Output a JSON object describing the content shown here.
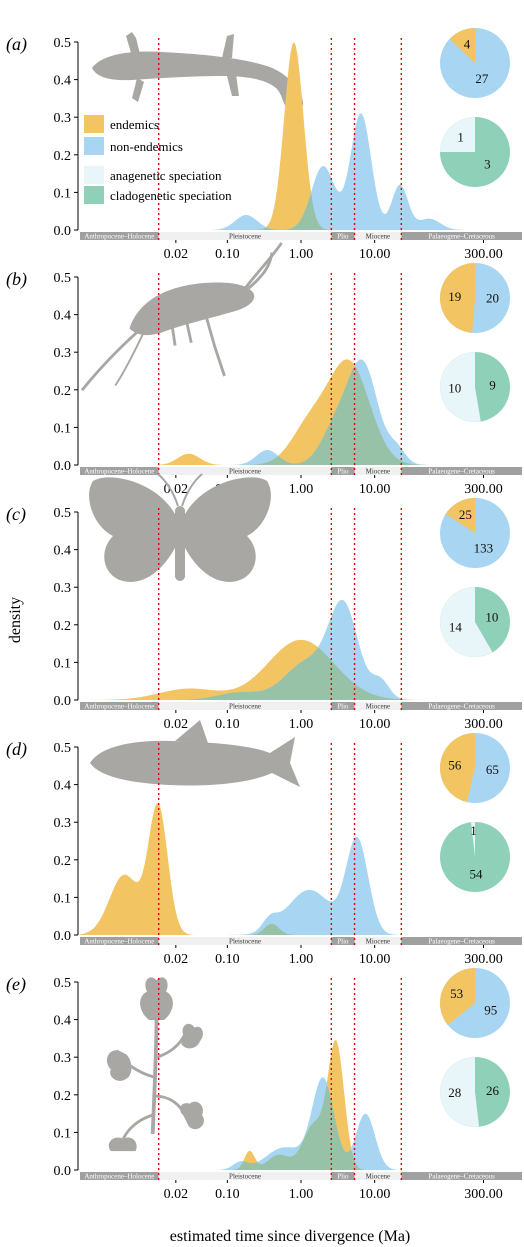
{
  "figure": {
    "ylabel": "density",
    "xlabel": "estimated time since divergence (Ma)"
  },
  "colors": {
    "endemic": "#f2c462",
    "nonendemic": "#a8d6f2",
    "anagenetic": "#e8f5f9",
    "cladogenetic": "#8fd1b8",
    "overlap": "#98c2a8",
    "silhouette": "#a9a7a4",
    "divider": "#e00000",
    "era_dark": "#a0a0a0",
    "era_light": "#f0f0f0"
  },
  "legend": [
    {
      "key": "endemic",
      "label": "endemics"
    },
    {
      "key": "nonendemic",
      "label": "non-endemics"
    },
    {
      "key": "anagenetic",
      "label": "anagenetic speciation"
    },
    {
      "key": "cladogenetic",
      "label": "cladogenetic speciation"
    }
  ],
  "chart_data": [
    {
      "panel": "(a)",
      "type": "area",
      "silhouette": "salamander-icon",
      "xscale": "log",
      "xlim": [
        0.001,
        1000
      ],
      "ylim": [
        0,
        0.52
      ],
      "yticks": [
        "0.0",
        "0.1",
        "0.2",
        "0.3",
        "0.4",
        "0.5"
      ],
      "xticks": [
        "0.02",
        "0.10",
        "1.00",
        "10.00",
        "300.00"
      ],
      "dividers_Ma": [
        0.0117,
        2.58,
        5.33,
        23
      ],
      "eras": [
        "Anthropocene–Holocene",
        "Pleistocene",
        "Plio",
        "Miocene",
        "Palaeogene–Cretaceous"
      ],
      "series": [
        {
          "name": "endemics",
          "key": "endemic",
          "peaks": [
            [
              0.8,
              0.5,
              0.13
            ]
          ]
        },
        {
          "name": "non-endemics",
          "key": "nonendemic",
          "peaks": [
            [
              6.5,
              0.31,
              0.14
            ],
            [
              2.0,
              0.17,
              0.16
            ],
            [
              0.18,
              0.04,
              0.15
            ],
            [
              22,
              0.12,
              0.11
            ],
            [
              55,
              0.03,
              0.15
            ]
          ]
        }
      ],
      "pies": [
        {
          "slices": [
            {
              "label": "endemics",
              "value": 4
            },
            {
              "label": "non-endemics",
              "value": 27
            }
          ]
        },
        {
          "slices": [
            {
              "label": "anagenetic speciation",
              "value": 1
            },
            {
              "label": "cladogenetic speciation",
              "value": 3
            }
          ]
        }
      ]
    },
    {
      "panel": "(b)",
      "type": "area",
      "silhouette": "shrimp-icon",
      "xscale": "log",
      "xlim": [
        0.001,
        1000
      ],
      "ylim": [
        0,
        0.52
      ],
      "yticks": [
        "0.0",
        "0.1",
        "0.2",
        "0.3",
        "0.4",
        "0.5"
      ],
      "xticks": [
        "0.02",
        "0.10",
        "1.00",
        "10.00",
        "300.00"
      ],
      "dividers_Ma": [
        0.0117,
        2.58,
        5.33,
        23
      ],
      "eras": [
        "Anthropocene–Holocene",
        "Pleistocene",
        "Plio",
        "Miocene",
        "Palaeogene–Cretaceous"
      ],
      "series": [
        {
          "name": "endemics",
          "key": "endemic",
          "peaks": [
            [
              4.5,
              0.27,
              0.28
            ],
            [
              1.3,
              0.1,
              0.25
            ],
            [
              0.03,
              0.03,
              0.15
            ]
          ]
        },
        {
          "name": "non-endemics",
          "key": "nonendemic",
          "peaks": [
            [
              7.0,
              0.26,
              0.2
            ],
            [
              3.0,
              0.1,
              0.2
            ],
            [
              0.35,
              0.04,
              0.15
            ],
            [
              20,
              0.04,
              0.12
            ]
          ]
        }
      ],
      "pies": [
        {
          "slices": [
            {
              "label": "endemics",
              "value": 19
            },
            {
              "label": "non-endemics",
              "value": 20
            }
          ]
        },
        {
          "slices": [
            {
              "label": "anagenetic speciation",
              "value": 10
            },
            {
              "label": "cladogenetic speciation",
              "value": 9
            }
          ]
        }
      ]
    },
    {
      "panel": "(c)",
      "type": "area",
      "silhouette": "butterfly-icon",
      "xscale": "log",
      "xlim": [
        0.001,
        1000
      ],
      "ylim": [
        0,
        0.52
      ],
      "yticks": [
        "0.0",
        "0.1",
        "0.2",
        "0.3",
        "0.4",
        "0.5"
      ],
      "xticks": [
        "0.02",
        "0.10",
        "1.00",
        "10.00",
        "300.00"
      ],
      "dividers_Ma": [
        0.0117,
        2.58,
        5.33,
        23
      ],
      "eras": [
        "Anthropocene–Holocene",
        "Pleistocene",
        "Plio",
        "Miocene",
        "Palaeogene–Cretaceous"
      ],
      "series": [
        {
          "name": "endemics",
          "key": "endemic",
          "peaks": [
            [
              1.0,
              0.16,
              0.45
            ],
            [
              0.03,
              0.03,
              0.4
            ]
          ]
        },
        {
          "name": "non-endemics",
          "key": "nonendemic",
          "peaks": [
            [
              3.8,
              0.24,
              0.2
            ],
            [
              1.2,
              0.1,
              0.3
            ],
            [
              0.15,
              0.02,
              0.3
            ],
            [
              12,
              0.05,
              0.12
            ]
          ]
        }
      ],
      "pies": [
        {
          "slices": [
            {
              "label": "endemics",
              "value": 25
            },
            {
              "label": "non-endemics",
              "value": 133
            }
          ]
        },
        {
          "slices": [
            {
              "label": "anagenetic speciation",
              "value": 14
            },
            {
              "label": "cladogenetic speciation",
              "value": 10
            }
          ]
        }
      ]
    },
    {
      "panel": "(d)",
      "type": "area",
      "silhouette": "fish-icon",
      "xscale": "log",
      "xlim": [
        0.001,
        1000
      ],
      "ylim": [
        0,
        0.52
      ],
      "yticks": [
        "0.0",
        "0.1",
        "0.2",
        "0.3",
        "0.4",
        "0.5"
      ],
      "xticks": [
        "0.02",
        "0.10",
        "1.00",
        "10.00",
        "300.00"
      ],
      "dividers_Ma": [
        0.0117,
        2.58,
        5.33,
        23
      ],
      "eras": [
        "Anthropocene–Holocene",
        "Pleistocene",
        "Plio",
        "Miocene",
        "Palaeogene–Cretaceous"
      ],
      "series": [
        {
          "name": "endemics",
          "key": "endemic",
          "peaks": [
            [
              0.0115,
              0.34,
              0.13
            ],
            [
              0.004,
              0.16,
              0.2
            ],
            [
              0.4,
              0.03,
              0.1
            ]
          ]
        },
        {
          "name": "non-endemics",
          "key": "nonendemic",
          "peaks": [
            [
              5.8,
              0.25,
              0.15
            ],
            [
              1.3,
              0.12,
              0.3
            ],
            [
              0.38,
              0.03,
              0.1
            ]
          ]
        }
      ],
      "pies": [
        {
          "slices": [
            {
              "label": "endemics",
              "value": 56
            },
            {
              "label": "non-endemics",
              "value": 65
            }
          ]
        },
        {
          "slices": [
            {
              "label": "anagenetic speciation",
              "value": 1
            },
            {
              "label": "cladogenetic speciation",
              "value": 54
            }
          ]
        }
      ]
    },
    {
      "panel": "(e)",
      "type": "area",
      "silhouette": "bellflower-icon",
      "xscale": "log",
      "xlim": [
        0.001,
        1000
      ],
      "ylim": [
        0,
        0.52
      ],
      "yticks": [
        "0.0",
        "0.1",
        "0.2",
        "0.3",
        "0.4",
        "0.5"
      ],
      "xticks": [
        "0.02",
        "0.10",
        "1.00",
        "10.00",
        "300.00"
      ],
      "dividers_Ma": [
        0.0117,
        2.58,
        5.33,
        23
      ],
      "eras": [
        "Anthropocene–Holocene",
        "Pleistocene",
        "Plio",
        "Miocene",
        "Palaeogene–Cretaceous"
      ],
      "series": [
        {
          "name": "endemics",
          "key": "endemic",
          "peaks": [
            [
              3.0,
              0.33,
              0.11
            ],
            [
              1.5,
              0.12,
              0.15
            ],
            [
              0.2,
              0.05,
              0.07
            ],
            [
              0.5,
              0.04,
              0.15
            ]
          ]
        },
        {
          "name": "non-endemics",
          "key": "nonendemic",
          "peaks": [
            [
              2.0,
              0.24,
              0.15
            ],
            [
              7.5,
              0.15,
              0.13
            ],
            [
              0.6,
              0.06,
              0.25
            ],
            [
              0.15,
              0.02,
              0.1
            ]
          ]
        }
      ],
      "pies": [
        {
          "slices": [
            {
              "label": "endemics",
              "value": 53
            },
            {
              "label": "non-endemics",
              "value": 95
            }
          ]
        },
        {
          "slices": [
            {
              "label": "anagenetic speciation",
              "value": 28
            },
            {
              "label": "cladogenetic speciation",
              "value": 26
            }
          ]
        }
      ]
    }
  ]
}
